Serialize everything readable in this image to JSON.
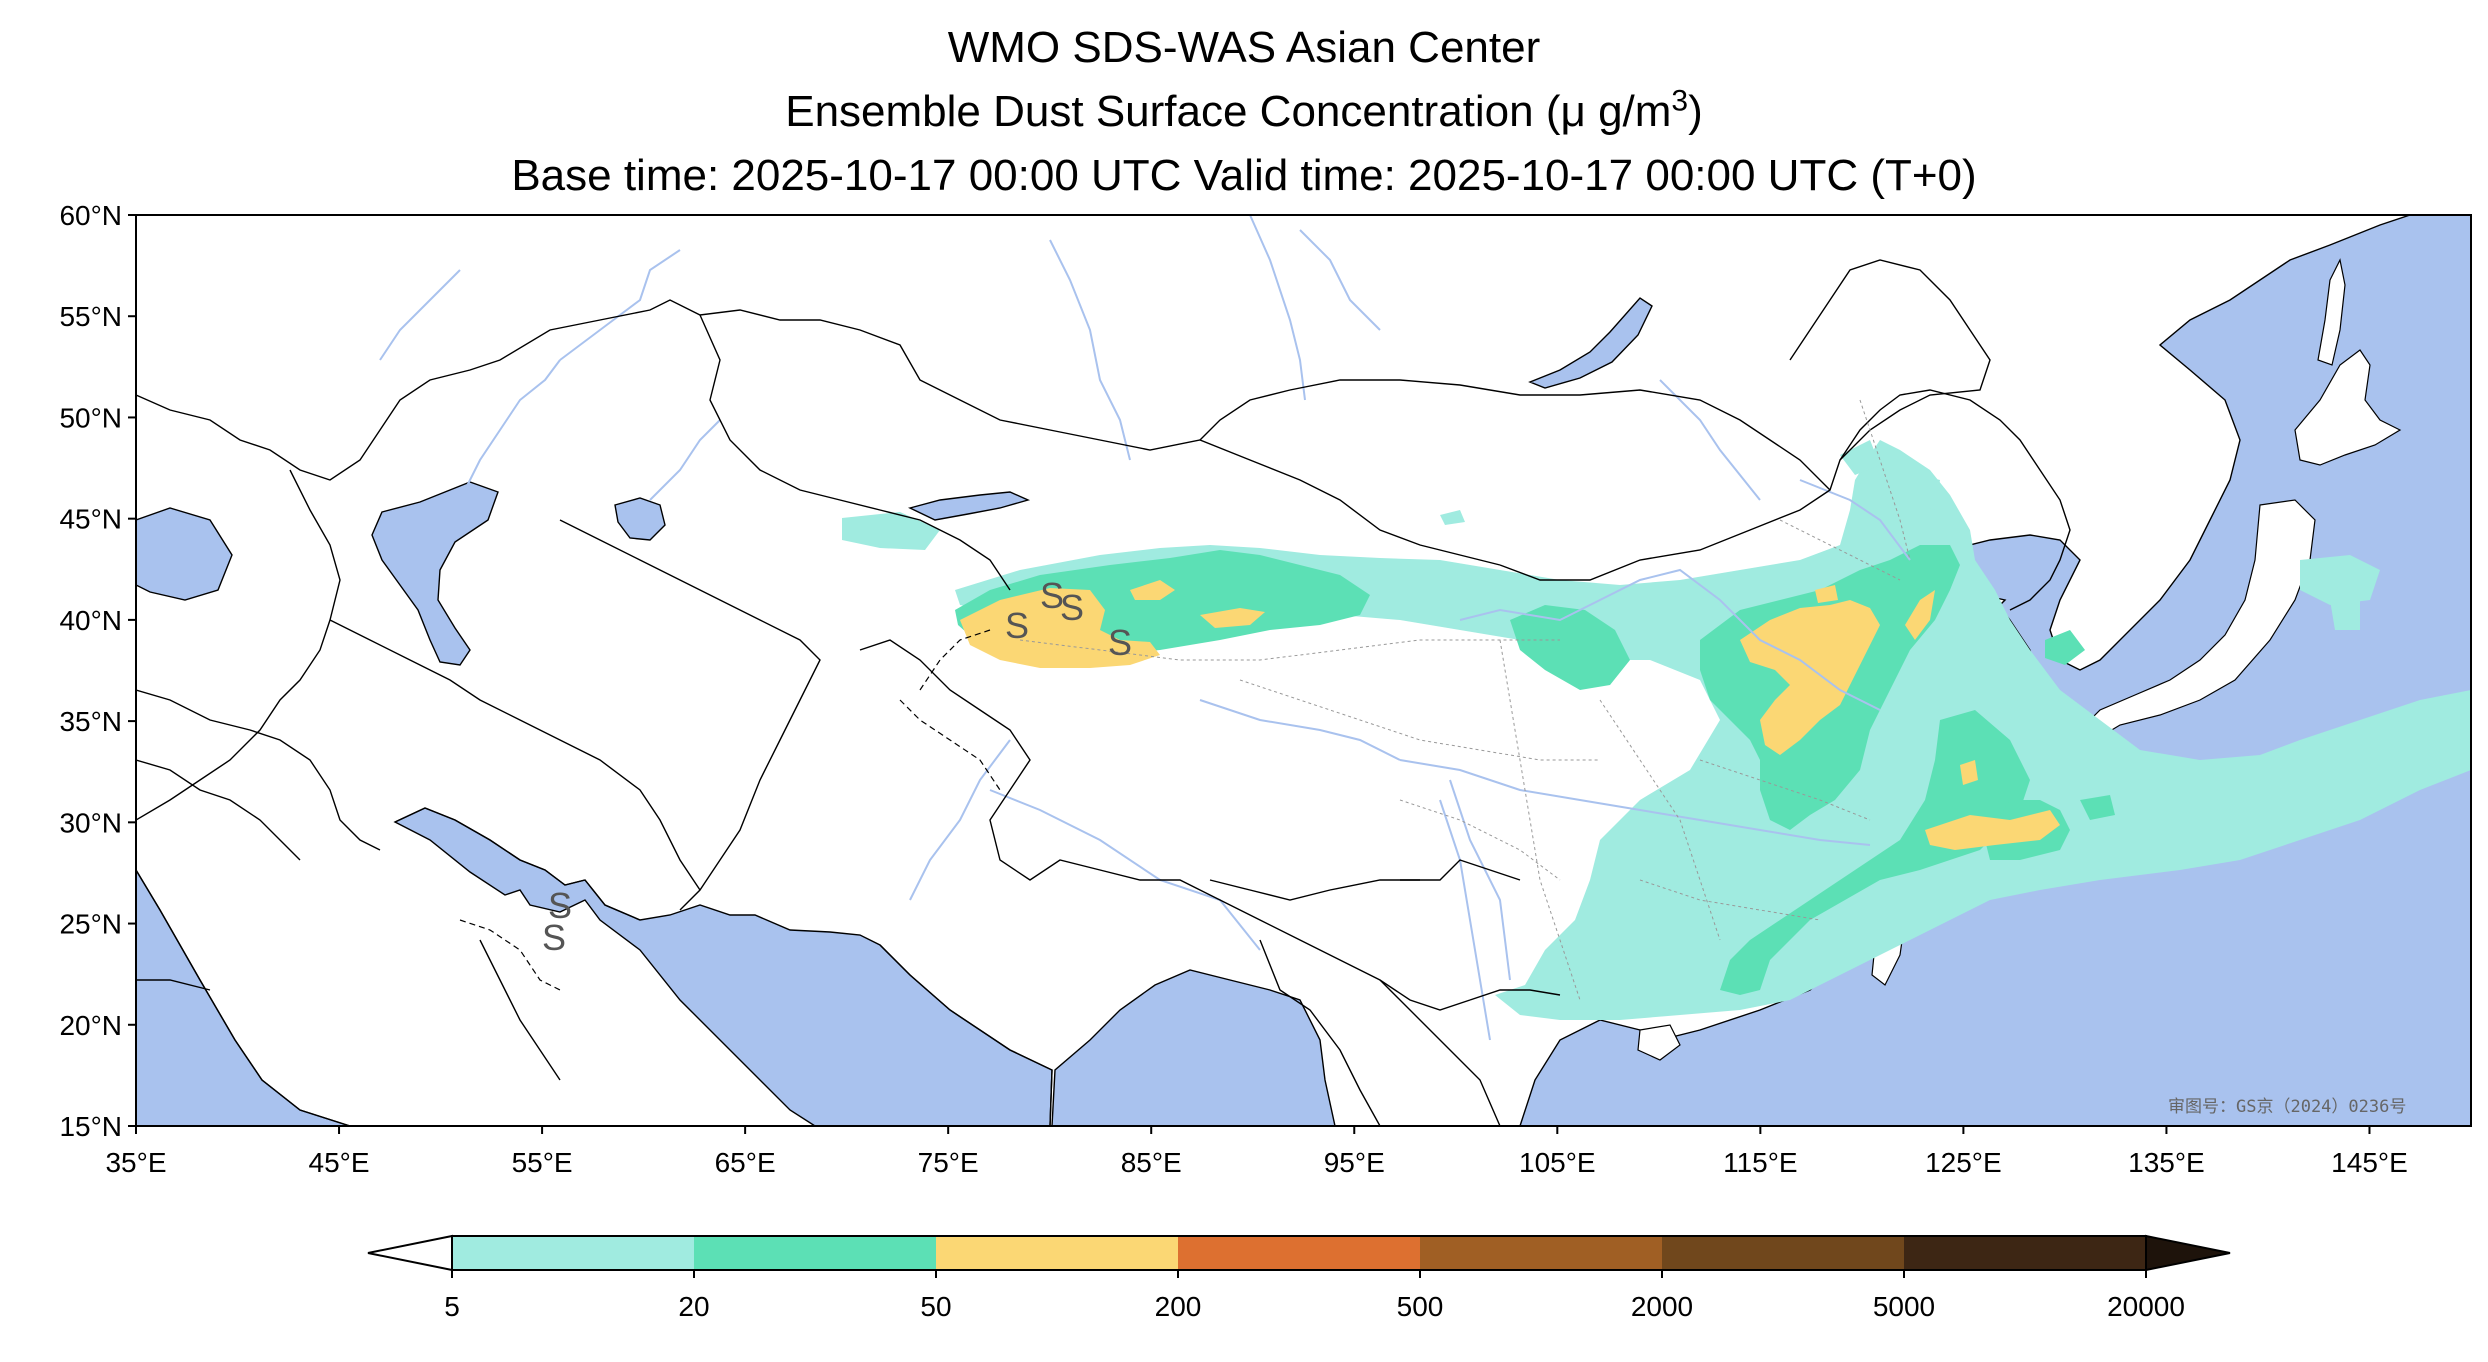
{
  "title": {
    "line1": "WMO SDS-WAS Asian Center",
    "line2_prefix": "Ensemble Dust Surface Concentration (μ g/m",
    "line2_sup": "3",
    "line2_suffix": ")",
    "line3": "Base time: 2025-10-17 00:00 UTC Valid time: 2025-10-17 00:00 UTC (T+0)"
  },
  "map": {
    "lon_range": [
      35,
      150
    ],
    "lat_range": [
      15,
      60
    ],
    "lon_ticks": [
      "35°E",
      "45°E",
      "55°E",
      "65°E",
      "75°E",
      "85°E",
      "95°E",
      "105°E",
      "115°E",
      "125°E",
      "135°E",
      "145°E"
    ],
    "lat_ticks": [
      "15°N",
      "20°N",
      "25°N",
      "30°N",
      "35°N",
      "40°N",
      "45°N",
      "50°N",
      "55°N",
      "60°N"
    ],
    "approval_note": "审图号：GS京（2024）0236号",
    "dust_symbol": "S",
    "colors": {
      "ocean": "#a9c2ee",
      "land": "#ffffff",
      "river": "#a9c2ee",
      "border": "#000000"
    }
  },
  "colorbar": {
    "levels": [
      "5",
      "20",
      "50",
      "200",
      "500",
      "2000",
      "5000",
      "20000"
    ],
    "colors": [
      "#a0ebe0",
      "#5ce0b5",
      "#fbd774",
      "#dd7030",
      "#a05f24",
      "#70471c",
      "#3d2614"
    ],
    "under_color": "#ffffff",
    "over_color": "#1e130b"
  }
}
